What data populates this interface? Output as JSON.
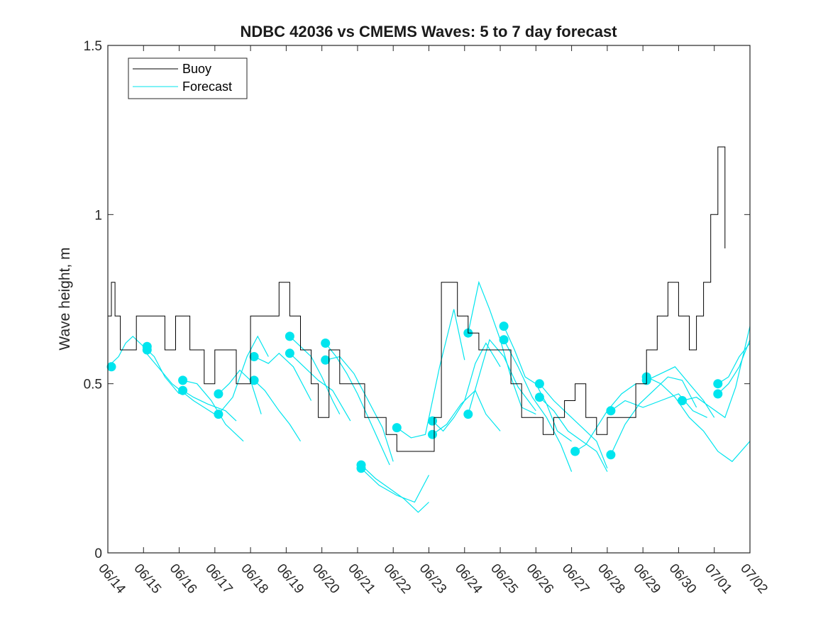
{
  "chart_data": {
    "type": "line",
    "title": "NDBC 42036 vs CMEMS Waves: 5 to 7 day forecast",
    "xlabel": "",
    "ylabel": "Wave height, m",
    "xlim": [
      14,
      32
    ],
    "ylim": [
      0,
      1.5
    ],
    "x_ticks": [
      14,
      15,
      16,
      17,
      18,
      19,
      20,
      21,
      22,
      23,
      24,
      25,
      26,
      27,
      28,
      29,
      30,
      31,
      32
    ],
    "x_tick_labels": [
      "06/14",
      "06/15",
      "06/16",
      "06/17",
      "06/18",
      "06/19",
      "06/20",
      "06/21",
      "06/22",
      "06/23",
      "06/24",
      "06/25",
      "06/26",
      "06/27",
      "06/28",
      "06/29",
      "06/30",
      "07/01",
      "07/02"
    ],
    "y_ticks": [
      0,
      0.5,
      1,
      1.5
    ],
    "y_tick_labels": [
      "0",
      "0.5",
      "1",
      "1.5"
    ],
    "grid": false,
    "legend_position": "top-left",
    "series": [
      {
        "name": "Buoy",
        "color": "#000000",
        "style": "step",
        "x": [
          14.0,
          14.1,
          14.2,
          14.35,
          14.5,
          14.8,
          15.2,
          15.6,
          15.9,
          16.3,
          16.7,
          17.0,
          17.3,
          17.6,
          18.0,
          18.4,
          18.8,
          19.1,
          19.4,
          19.7,
          19.9,
          20.2,
          20.5,
          20.8,
          21.2,
          21.5,
          21.8,
          22.1,
          22.4,
          22.7,
          23.0,
          23.15,
          23.35,
          23.6,
          23.8,
          24.1,
          24.4,
          24.7,
          25.0,
          25.3,
          25.6,
          25.9,
          26.2,
          26.5,
          26.8,
          27.1,
          27.4,
          27.7,
          28.0,
          28.4,
          28.8,
          29.1,
          29.4,
          29.7,
          30.0,
          30.3,
          30.5,
          30.7,
          30.9,
          31.1,
          31.3
        ],
        "y": [
          0.7,
          0.8,
          0.7,
          0.6,
          0.6,
          0.7,
          0.7,
          0.6,
          0.7,
          0.6,
          0.5,
          0.6,
          0.6,
          0.5,
          0.7,
          0.7,
          0.8,
          0.7,
          0.6,
          0.5,
          0.4,
          0.6,
          0.5,
          0.5,
          0.4,
          0.4,
          0.35,
          0.3,
          0.3,
          0.3,
          0.3,
          0.4,
          0.8,
          0.8,
          0.7,
          0.65,
          0.6,
          0.6,
          0.6,
          0.5,
          0.4,
          0.4,
          0.35,
          0.4,
          0.45,
          0.5,
          0.4,
          0.35,
          0.4,
          0.4,
          0.5,
          0.6,
          0.7,
          0.8,
          0.7,
          0.6,
          0.7,
          0.8,
          1.0,
          1.2,
          0.9
        ]
      },
      {
        "name": "Forecast",
        "color": "#00e5ee",
        "style": "line",
        "segments": [
          {
            "x": [
              14.0,
              14.3,
              14.5,
              14.7,
              14.9,
              15.1
            ],
            "y": [
              0.55,
              0.58,
              0.62,
              0.64,
              0.62,
              0.6
            ],
            "marker": [
              14.1,
              0.55
            ]
          },
          {
            "x": [
              15.0,
              15.3,
              15.6,
              16.0
            ],
            "y": [
              0.61,
              0.58,
              0.52,
              0.47
            ],
            "marker": [
              15.1,
              0.61
            ]
          },
          {
            "x": [
              15.0,
              15.4,
              15.8,
              16.4,
              17.0
            ],
            "y": [
              0.6,
              0.55,
              0.5,
              0.45,
              0.41
            ],
            "marker": [
              15.1,
              0.6
            ]
          },
          {
            "x": [
              16.1,
              16.5,
              16.9,
              17.3,
              17.8
            ],
            "y": [
              0.51,
              0.5,
              0.45,
              0.38,
              0.33
            ],
            "marker": [
              16.1,
              0.51
            ]
          },
          {
            "x": [
              16.1,
              16.4,
              16.8,
              17.3,
              17.6
            ],
            "y": [
              0.48,
              0.46,
              0.44,
              0.42,
              0.39
            ],
            "marker": [
              16.1,
              0.48
            ]
          },
          {
            "x": [
              17.1,
              17.4,
              17.7,
              18.0,
              18.3
            ],
            "y": [
              0.47,
              0.5,
              0.54,
              0.51,
              0.41
            ],
            "marker": [
              17.1,
              0.47
            ]
          },
          {
            "x": [
              17.1,
              17.5,
              17.9,
              18.2,
              18.5
            ],
            "y": [
              0.41,
              0.46,
              0.58,
              0.64,
              0.58
            ],
            "marker": [
              17.1,
              0.41
            ]
          },
          {
            "x": [
              18.1,
              18.5,
              18.8,
              19.2,
              19.7
            ],
            "y": [
              0.58,
              0.56,
              0.59,
              0.55,
              0.45
            ],
            "marker": [
              18.1,
              0.58
            ]
          },
          {
            "x": [
              18.1,
              18.4,
              18.8,
              19.1,
              19.4
            ],
            "y": [
              0.51,
              0.48,
              0.42,
              0.38,
              0.33
            ],
            "marker": [
              18.1,
              0.51
            ]
          },
          {
            "x": [
              19.1,
              19.4,
              19.7,
              20.0,
              20.3,
              20.5
            ],
            "y": [
              0.64,
              0.61,
              0.58,
              0.52,
              0.45,
              0.41
            ],
            "marker": [
              19.1,
              0.64
            ]
          },
          {
            "x": [
              19.1,
              19.5,
              19.9,
              20.3,
              20.8
            ],
            "y": [
              0.59,
              0.55,
              0.51,
              0.48,
              0.39
            ],
            "marker": [
              19.1,
              0.59
            ]
          },
          {
            "x": [
              20.1,
              20.4,
              20.7,
              21.0,
              21.3,
              21.6,
              21.9
            ],
            "y": [
              0.62,
              0.58,
              0.53,
              0.47,
              0.4,
              0.33,
              0.26
            ],
            "marker": [
              20.1,
              0.62
            ]
          },
          {
            "x": [
              20.1,
              20.5,
              20.9,
              21.3,
              21.7,
              22.0
            ],
            "y": [
              0.57,
              0.58,
              0.53,
              0.45,
              0.37,
              0.27
            ],
            "marker": [
              20.1,
              0.57
            ]
          },
          {
            "x": [
              21.1,
              21.5,
              21.9,
              22.3,
              22.7,
              23.0
            ],
            "y": [
              0.26,
              0.22,
              0.19,
              0.16,
              0.12,
              0.15
            ],
            "marker": [
              21.1,
              0.26
            ]
          },
          {
            "x": [
              21.1,
              21.6,
              22.1,
              22.6,
              23.0
            ],
            "y": [
              0.25,
              0.2,
              0.17,
              0.15,
              0.23
            ],
            "marker": [
              21.1,
              0.25
            ]
          },
          {
            "x": [
              22.1,
              22.5,
              22.9,
              23.3,
              23.7,
              24.0
            ],
            "y": [
              0.37,
              0.34,
              0.35,
              0.55,
              0.72,
              0.57
            ],
            "marker": [
              22.1,
              0.37
            ]
          },
          {
            "x": [
              23.1,
              23.4,
              23.7,
              24.0,
              24.3,
              24.6,
              25.0
            ],
            "y": [
              0.39,
              0.36,
              0.4,
              0.45,
              0.56,
              0.62,
              0.55
            ],
            "marker": [
              23.1,
              0.39
            ]
          },
          {
            "x": [
              23.1,
              23.5,
              23.9,
              24.3,
              24.6,
              25.0
            ],
            "y": [
              0.35,
              0.38,
              0.44,
              0.48,
              0.41,
              0.36
            ],
            "marker": [
              23.1,
              0.35
            ]
          },
          {
            "x": [
              24.1,
              24.4,
              24.7,
              25.0,
              25.3,
              25.6,
              26.0
            ],
            "y": [
              0.65,
              0.8,
              0.72,
              0.63,
              0.52,
              0.43,
              0.41
            ],
            "marker": [
              24.1,
              0.65
            ]
          },
          {
            "x": [
              24.1,
              24.4,
              24.7,
              25.1,
              25.5,
              26.0
            ],
            "y": [
              0.41,
              0.52,
              0.63,
              0.58,
              0.49,
              0.42
            ],
            "marker": [
              24.1,
              0.41
            ]
          },
          {
            "x": [
              25.1,
              25.4,
              25.7,
              26.0,
              26.3,
              26.6,
              27.0
            ],
            "y": [
              0.67,
              0.6,
              0.52,
              0.5,
              0.44,
              0.36,
              0.33
            ],
            "marker": [
              25.1,
              0.67
            ]
          },
          {
            "x": [
              25.1,
              25.5,
              25.9,
              26.3,
              26.7,
              27.0
            ],
            "y": [
              0.63,
              0.55,
              0.46,
              0.4,
              0.32,
              0.24
            ],
            "marker": [
              25.1,
              0.63
            ]
          },
          {
            "x": [
              26.1,
              26.5,
              26.9,
              27.3,
              27.7,
              28.0
            ],
            "y": [
              0.5,
              0.45,
              0.41,
              0.37,
              0.33,
              0.25
            ],
            "marker": [
              26.1,
              0.5
            ]
          },
          {
            "x": [
              26.1,
              26.5,
              26.9,
              27.3,
              27.7,
              28.0
            ],
            "y": [
              0.46,
              0.42,
              0.36,
              0.33,
              0.3,
              0.24
            ],
            "marker": [
              26.1,
              0.46
            ]
          },
          {
            "x": [
              27.1,
              27.4,
              27.7,
              28.0,
              28.4,
              28.8
            ],
            "y": [
              0.3,
              0.32,
              0.37,
              0.42,
              0.47,
              0.5
            ],
            "marker": [
              27.1,
              0.3
            ]
          },
          {
            "x": [
              28.1,
              28.5,
              28.9,
              29.3,
              29.7,
              30.1,
              30.5
            ],
            "y": [
              0.29,
              0.38,
              0.44,
              0.48,
              0.52,
              0.51,
              0.43
            ],
            "marker": [
              28.1,
              0.29
            ]
          },
          {
            "x": [
              28.1,
              28.5,
              29.0,
              29.5,
              30.0,
              30.4,
              30.8
            ],
            "y": [
              0.42,
              0.45,
              0.43,
              0.45,
              0.47,
              0.42,
              0.4
            ],
            "marker": [
              28.1,
              0.42
            ]
          },
          {
            "x": [
              29.1,
              29.5,
              29.9,
              30.3,
              30.7,
              31.1,
              31.5,
              32.0
            ],
            "y": [
              0.52,
              0.5,
              0.46,
              0.4,
              0.36,
              0.3,
              0.27,
              0.33
            ],
            "marker": [
              29.1,
              0.52
            ]
          },
          {
            "x": [
              29.1,
              29.5,
              29.9,
              30.3,
              30.7,
              31.0
            ],
            "y": [
              0.51,
              0.53,
              0.55,
              0.5,
              0.45,
              0.4
            ],
            "marker": [
              29.1,
              0.51
            ]
          },
          {
            "x": [
              30.1,
              30.5,
              30.9,
              31.3,
              31.6,
              32.0
            ],
            "y": [
              0.45,
              0.46,
              0.43,
              0.4,
              0.49,
              0.67
            ],
            "marker": [
              30.1,
              0.45
            ]
          },
          {
            "x": [
              31.1,
              31.4,
              31.7,
              32.0
            ],
            "y": [
              0.47,
              0.5,
              0.55,
              0.63
            ],
            "marker": [
              31.1,
              0.47
            ]
          },
          {
            "x": [
              31.1,
              31.4,
              31.7,
              32.0
            ],
            "y": [
              0.5,
              0.52,
              0.58,
              0.62
            ],
            "marker": [
              31.1,
              0.5
            ]
          }
        ]
      }
    ]
  }
}
